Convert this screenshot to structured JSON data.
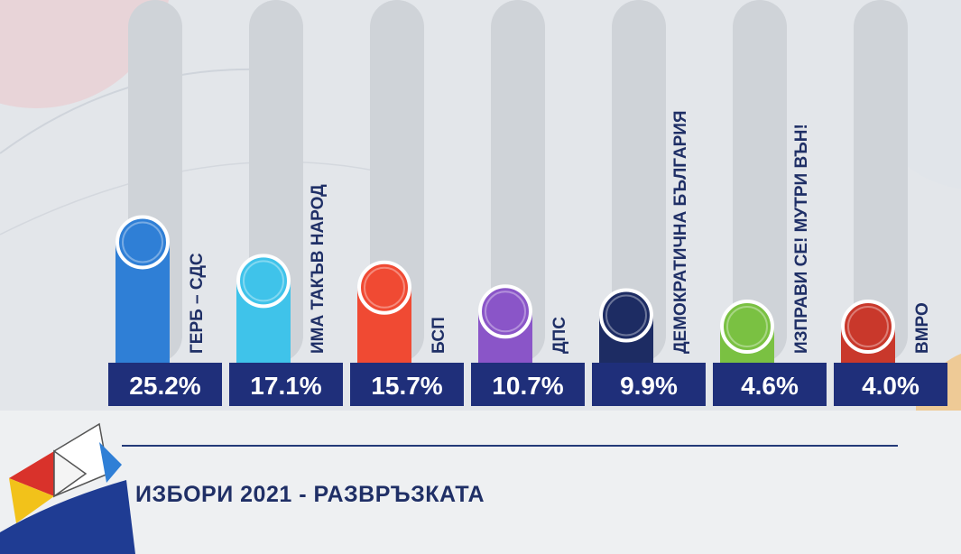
{
  "chart_data": {
    "type": "bar",
    "categories": [
      "ГЕРБ – СДС",
      "ИМА ТАКЪВ НАРОД",
      "БСП",
      "ДПС",
      "ДЕМОКРАТИЧНА БЪЛГАРИЯ",
      "ИЗПРАВИ СЕ! МУТРИ ВЪН!",
      "ВМРО"
    ],
    "values": [
      25.2,
      17.1,
      15.7,
      10.7,
      9.9,
      4.6,
      4.0
    ],
    "value_labels": [
      "25.2%",
      "17.1%",
      "15.7%",
      "10.7%",
      "9.9%",
      "4.6%",
      "4.0%"
    ],
    "colors": [
      "#2f7fd6",
      "#3fc3ea",
      "#f04a33",
      "#8a55c8",
      "#1d2c63",
      "#7ac142",
      "#c9382b"
    ],
    "ylim": [
      0,
      100
    ],
    "grid": false,
    "legend": "none"
  },
  "footer": {
    "title": "ИЗБОРИ 2021 - РАЗВРЪЗКАТА"
  }
}
